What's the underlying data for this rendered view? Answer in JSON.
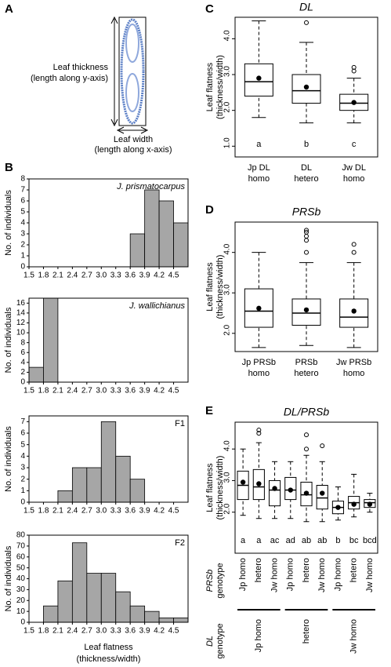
{
  "panel_labels": [
    "A",
    "B",
    "C",
    "D",
    "E"
  ],
  "diagram": {
    "thickness_label": [
      "Leaf thickness",
      "(length along y-axis)"
    ],
    "width_label": [
      "Leaf width",
      "(length along x-axis)"
    ]
  },
  "chart_data": [
    {
      "type": "histogram",
      "annotation": "J. prismatocarpus",
      "ylabel": "No. of individuals",
      "color": "#a6a6a6",
      "bins": [
        1.5,
        1.8,
        2.1,
        2.4,
        2.7,
        3.0,
        3.3,
        3.6,
        3.9,
        4.2,
        4.5,
        4.8
      ],
      "values": [
        0,
        0,
        0,
        0,
        0,
        0,
        0,
        3,
        7,
        6,
        4
      ],
      "xlim": [
        1.5,
        4.8
      ],
      "xticks": [
        1.5,
        1.8,
        2.1,
        2.4,
        2.7,
        {
          "value": 3.0,
          "label": "3.0"
        },
        3.3,
        3.6,
        3.9,
        4.2,
        4.5
      ],
      "ylim": [
        0,
        8
      ],
      "yticks": [
        0,
        1,
        2,
        3,
        4,
        5,
        6,
        7,
        8
      ]
    },
    {
      "type": "histogram",
      "annotation": "J. wallichianus",
      "ylabel": "No. of individuals",
      "color": "#a6a6a6",
      "bins": [
        1.5,
        1.8,
        2.1,
        2.4,
        2.7,
        3.0,
        3.3,
        3.6,
        3.9,
        4.2,
        4.5,
        4.8
      ],
      "values": [
        3,
        17,
        0,
        0,
        0,
        0,
        0,
        0,
        0,
        0,
        0
      ],
      "xlim": [
        1.5,
        4.8
      ],
      "xticks": [
        1.5,
        1.8,
        2.1,
        2.4,
        2.7,
        {
          "value": 3.0,
          "label": "3.0"
        },
        3.3,
        3.6,
        3.9,
        4.2,
        4.5
      ],
      "ylim": [
        0,
        17
      ],
      "yticks": [
        0,
        2,
        4,
        6,
        8,
        10,
        12,
        14,
        16
      ]
    },
    {
      "type": "histogram",
      "annotation": "F1",
      "ylabel": "No. of individuals",
      "color": "#a6a6a6",
      "bins": [
        1.5,
        1.8,
        2.1,
        2.4,
        2.7,
        3.0,
        3.3,
        3.6,
        3.9,
        4.2,
        4.5,
        4.8
      ],
      "values": [
        0,
        0,
        1,
        3,
        3,
        7,
        4,
        2,
        0,
        0,
        0
      ],
      "xlim": [
        1.5,
        4.8
      ],
      "xticks": [
        1.5,
        1.8,
        2.1,
        2.4,
        2.7,
        {
          "value": 3.0,
          "label": "3.0"
        },
        3.3,
        3.6,
        3.9,
        4.2,
        4.5
      ],
      "ylim": [
        0,
        7.5
      ],
      "yticks": [
        0,
        1,
        2,
        3,
        4,
        5,
        6,
        7
      ]
    },
    {
      "type": "histogram",
      "annotation": "F2",
      "ylabel": "No. of individuals",
      "xlabel": [
        "Leaf flatness",
        "(thickness/width)"
      ],
      "color": "#a6a6a6",
      "bins": [
        1.5,
        1.8,
        2.1,
        2.4,
        2.7,
        3.0,
        3.3,
        3.6,
        3.9,
        4.2,
        4.5,
        4.8
      ],
      "values": [
        0,
        15,
        38,
        73,
        45,
        45,
        28,
        15,
        10,
        4,
        4
      ],
      "xlim": [
        1.5,
        4.8
      ],
      "xticks": [
        1.5,
        1.8,
        2.1,
        2.4,
        2.7,
        {
          "value": 3.0,
          "label": "3.0"
        },
        3.3,
        3.6,
        3.9,
        4.2,
        4.5
      ],
      "ylim": [
        0,
        80
      ],
      "yticks": [
        0,
        10,
        20,
        30,
        40,
        50,
        60,
        70,
        80
      ]
    },
    {
      "type": "box",
      "title": "DL",
      "ylabel": [
        "Leaf flatness",
        "(thickness/width)"
      ],
      "categories": [
        "Jp DL homo",
        "DL hetero",
        "Jw DL homo"
      ],
      "letters": [
        "a",
        "b",
        "c"
      ],
      "boxes": [
        {
          "whislo": 1.8,
          "q1": 2.4,
          "med": 2.8,
          "q3": 3.3,
          "whishi": 4.5,
          "mean": 2.9,
          "fliers": []
        },
        {
          "whislo": 1.65,
          "q1": 2.2,
          "med": 2.55,
          "q3": 3.0,
          "whishi": 3.9,
          "mean": 2.65,
          "fliers": [
            4.45
          ]
        },
        {
          "whislo": 1.65,
          "q1": 2.0,
          "med": 2.2,
          "q3": 2.45,
          "whishi": 2.9,
          "mean": 2.22,
          "fliers": [
            3.1,
            3.2
          ]
        }
      ],
      "ylim": [
        0.7,
        4.6
      ],
      "yticks": [
        {
          "value": 1.0,
          "label": "1.0"
        },
        {
          "value": 2.0,
          "label": "2.0"
        },
        {
          "value": 3.0,
          "label": "3.0"
        },
        {
          "value": 4.0,
          "label": "4.0"
        }
      ]
    },
    {
      "type": "box",
      "title": "PRSb",
      "ylabel": [
        "Leaf flatness",
        "(thickness/width)"
      ],
      "categories": [
        "Jp PRSb homo",
        "PRSb hetero",
        "Jw PRSb homo"
      ],
      "boxes": [
        {
          "whislo": 1.65,
          "q1": 2.15,
          "med": 2.55,
          "q3": 3.1,
          "whishi": 4.0,
          "mean": 2.62,
          "fliers": []
        },
        {
          "whislo": 1.7,
          "q1": 2.2,
          "med": 2.5,
          "q3": 2.85,
          "whishi": 3.75,
          "mean": 2.58,
          "fliers": [
            4.0,
            4.3,
            4.4,
            4.5,
            4.55
          ]
        },
        {
          "whislo": 1.65,
          "q1": 2.15,
          "med": 2.4,
          "q3": 2.85,
          "whishi": 3.75,
          "mean": 2.55,
          "fliers": [
            4.0,
            4.2
          ]
        }
      ],
      "ylim": [
        1.55,
        4.75
      ],
      "yticks": [
        {
          "value": 2.0,
          "label": "2.0"
        },
        {
          "value": 3.0,
          "label": "3.0"
        },
        {
          "value": 4.0,
          "label": "4.0"
        }
      ]
    },
    {
      "type": "box",
      "title": "DL/PRSb",
      "ylabel": [
        "Leaf flatness",
        "(thickness/width)"
      ],
      "categories": [
        "Jp homo",
        "hetero",
        "Jw homo",
        "Jp homo",
        "hetero",
        "Jw homo",
        "Jp homo",
        "hetero",
        "Jw homo"
      ],
      "letters": [
        "a",
        "a",
        "ac",
        "ad",
        "ab",
        "ab",
        "b",
        "bc",
        "bcd"
      ],
      "category_axis_label": [
        "PRSb",
        "genotype"
      ],
      "groups": [
        "Jp homo",
        "hetero",
        "Jw homo"
      ],
      "group_axis_label": [
        "DL",
        "genotype"
      ],
      "boxes": [
        {
          "whislo": 1.9,
          "q1": 2.4,
          "med": 2.85,
          "q3": 3.3,
          "whishi": 4.0,
          "mean": 2.95,
          "fliers": []
        },
        {
          "whislo": 1.8,
          "q1": 2.4,
          "med": 2.8,
          "q3": 3.35,
          "whishi": 4.2,
          "mean": 2.9,
          "fliers": [
            4.5,
            4.6
          ]
        },
        {
          "whislo": 1.8,
          "q1": 2.2,
          "med": 2.7,
          "q3": 3.0,
          "whishi": 3.6,
          "mean": 2.75,
          "fliers": []
        },
        {
          "whislo": 1.8,
          "q1": 2.4,
          "med": 2.7,
          "q3": 3.1,
          "whishi": 3.6,
          "mean": 2.7,
          "fliers": []
        },
        {
          "whislo": 1.7,
          "q1": 2.2,
          "med": 2.55,
          "q3": 2.95,
          "whishi": 3.8,
          "mean": 2.6,
          "fliers": [
            4.0,
            4.45
          ]
        },
        {
          "whislo": 1.7,
          "q1": 2.1,
          "med": 2.45,
          "q3": 2.85,
          "whishi": 3.6,
          "mean": 2.6,
          "fliers": [
            4.1
          ]
        },
        {
          "whislo": 1.75,
          "q1": 1.95,
          "med": 2.15,
          "q3": 2.35,
          "whishi": 2.8,
          "mean": 2.15,
          "fliers": []
        },
        {
          "whislo": 1.85,
          "q1": 2.1,
          "med": 2.3,
          "q3": 2.5,
          "whishi": 3.2,
          "mean": 2.25,
          "fliers": []
        },
        {
          "whislo": 2.0,
          "q1": 2.15,
          "med": 2.3,
          "q3": 2.4,
          "whishi": 2.6,
          "mean": 2.25,
          "fliers": []
        }
      ],
      "ylim": [
        0.7,
        4.85
      ],
      "yticks": [
        {
          "value": 2.0,
          "label": "2.0"
        },
        {
          "value": 3.0,
          "label": "3.0"
        },
        {
          "value": 4.0,
          "label": "4.0"
        }
      ]
    }
  ]
}
